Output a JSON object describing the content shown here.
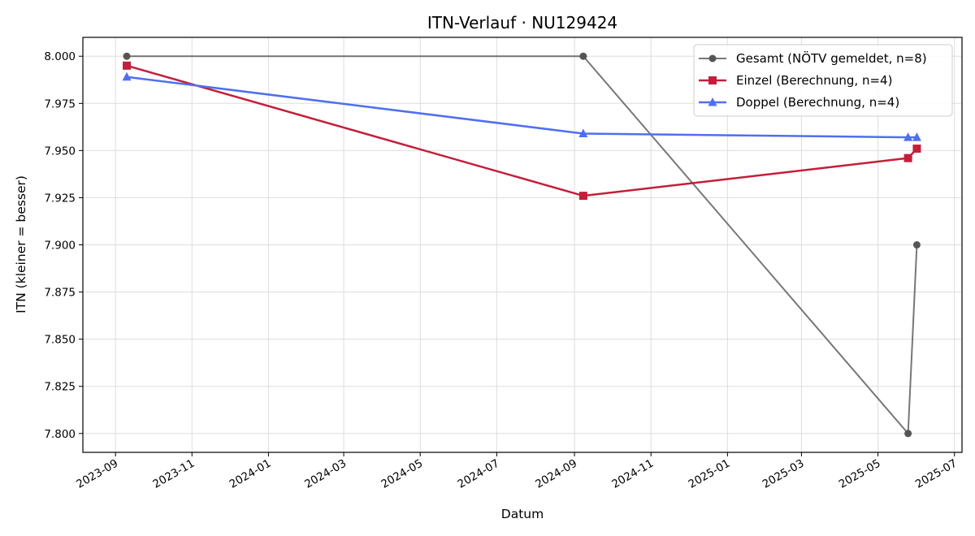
{
  "chart_data": {
    "type": "line",
    "title": "ITN-Verlauf · NU129424",
    "xlabel": "Datum",
    "ylabel": "ITN  (kleiner = besser)",
    "x_axis": "date",
    "xlim": [
      "2023-08-06",
      "2025-07-07"
    ],
    "ylim": [
      7.79,
      8.01
    ],
    "x_ticks": [
      "2023-09-01",
      "2023-11-01",
      "2024-01-01",
      "2024-03-01",
      "2024-05-01",
      "2024-07-01",
      "2024-09-01",
      "2024-11-01",
      "2025-01-01",
      "2025-03-01",
      "2025-05-01",
      "2025-07-01"
    ],
    "x_tick_labels": [
      "2023-09",
      "2023-11",
      "2024-01",
      "2024-03",
      "2024-05",
      "2024-07",
      "2024-09",
      "2024-11",
      "2025-01",
      "2025-03",
      "2025-05",
      "2025-07"
    ],
    "y_ticks": [
      7.8,
      7.825,
      7.85,
      7.875,
      7.9,
      7.925,
      7.95,
      7.975,
      8.0
    ],
    "y_tick_labels": [
      "7.800",
      "7.825",
      "7.850",
      "7.875",
      "7.900",
      "7.925",
      "7.950",
      "7.975",
      "8.000"
    ],
    "grid": true,
    "legend_position": "top-right",
    "series": [
      {
        "name": "Gesamt (NÖTV gemeldet, n=8)",
        "color": "#555555",
        "marker": "circle",
        "points": [
          {
            "x": "2023-09-10",
            "y": 8.0
          },
          {
            "x": "2024-09-08",
            "y": 8.0
          },
          {
            "x": "2025-05-25",
            "y": 7.8
          },
          {
            "x": "2025-06-01",
            "y": 7.9
          }
        ]
      },
      {
        "name": "Einzel (Berechnung, n=4)",
        "color": "#c41e3a",
        "marker": "square",
        "points": [
          {
            "x": "2023-09-10",
            "y": 7.995
          },
          {
            "x": "2024-09-08",
            "y": 7.926
          },
          {
            "x": "2025-05-25",
            "y": 7.946
          },
          {
            "x": "2025-06-01",
            "y": 7.951
          }
        ]
      },
      {
        "name": "Doppel (Berechnung, n=4)",
        "color": "#4f6ff0",
        "marker": "triangle",
        "points": [
          {
            "x": "2023-09-10",
            "y": 7.989
          },
          {
            "x": "2024-09-08",
            "y": 7.959
          },
          {
            "x": "2025-05-25",
            "y": 7.957
          },
          {
            "x": "2025-06-01",
            "y": 7.957
          }
        ]
      }
    ]
  }
}
